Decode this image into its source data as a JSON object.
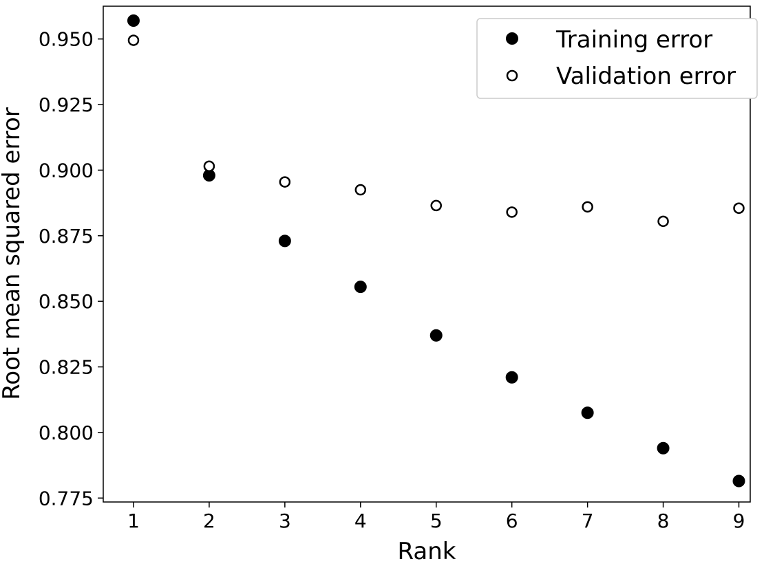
{
  "chart_data": {
    "type": "scatter",
    "title": "",
    "xlabel": "Rank",
    "ylabel": "Root mean squared error",
    "xlim": [
      0.6,
      9.15
    ],
    "ylim": [
      0.7735,
      0.9625
    ],
    "xticks": [
      1,
      2,
      3,
      4,
      5,
      6,
      7,
      8,
      9
    ],
    "xtick_labels": [
      "1",
      "2",
      "3",
      "4",
      "5",
      "6",
      "7",
      "8",
      "9"
    ],
    "yticks": [
      0.775,
      0.8,
      0.825,
      0.85,
      0.875,
      0.9,
      0.925,
      0.95
    ],
    "ytick_labels": [
      "0.775",
      "0.800",
      "0.825",
      "0.850",
      "0.875",
      "0.900",
      "0.925",
      "0.950"
    ],
    "grid": false,
    "legend_position": "top-right",
    "series": [
      {
        "name": "Training error",
        "marker": "filled-circle",
        "color": "#000000",
        "x": [
          1,
          2,
          3,
          4,
          5,
          6,
          7,
          8,
          9
        ],
        "y": [
          0.957,
          0.898,
          0.873,
          0.8555,
          0.837,
          0.821,
          0.8075,
          0.794,
          0.7815
        ]
      },
      {
        "name": "Validation error",
        "marker": "open-circle",
        "color": "#000000",
        "x": [
          1,
          2,
          3,
          4,
          5,
          6,
          7,
          8,
          9
        ],
        "y": [
          0.9495,
          0.9015,
          0.8955,
          0.8925,
          0.8865,
          0.884,
          0.886,
          0.8805,
          0.8855
        ]
      }
    ]
  }
}
